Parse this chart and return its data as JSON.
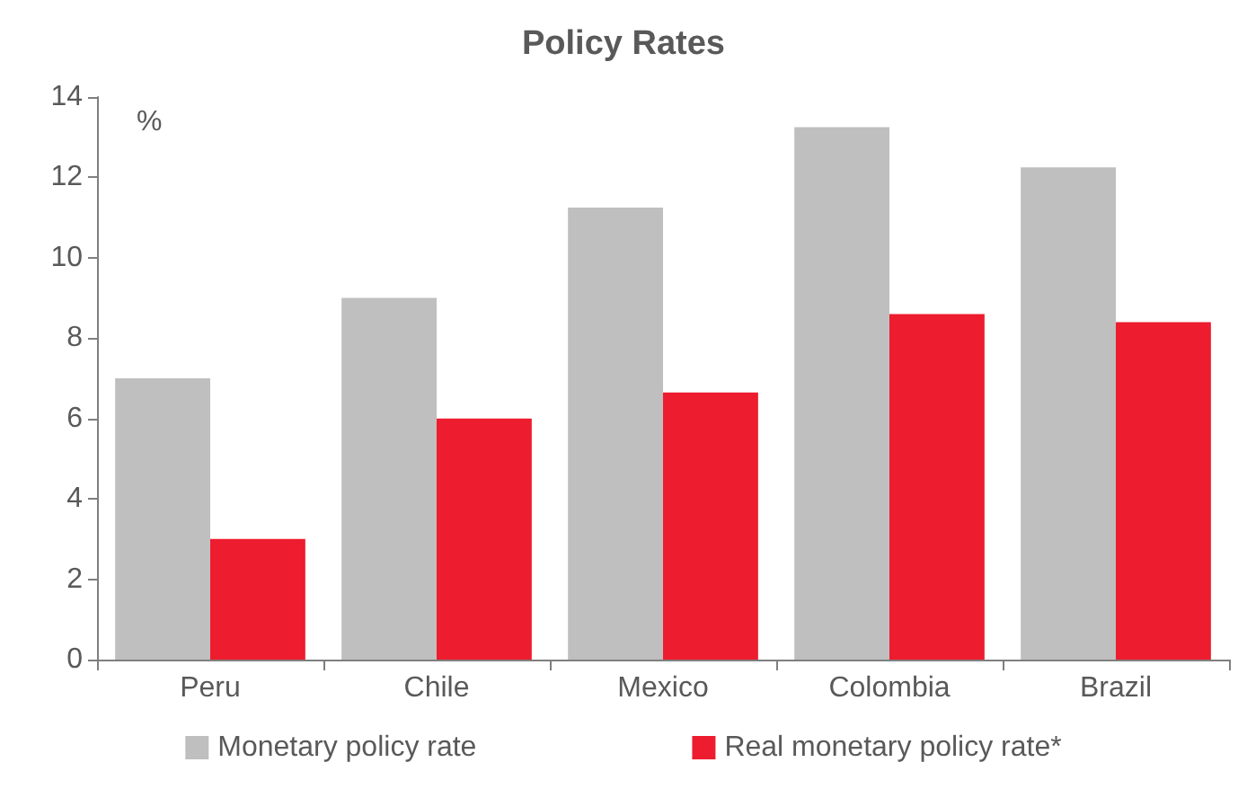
{
  "chart_data": {
    "type": "bar",
    "title": "Policy Rates",
    "ylabel": "%",
    "categories": [
      "Peru",
      "Chile",
      "Mexico",
      "Colombia",
      "Brazil"
    ],
    "series": [
      {
        "name": "Monetary policy rate",
        "color": "#bfbfbf",
        "values": [
          7.0,
          9.0,
          11.25,
          13.25,
          12.25
        ]
      },
      {
        "name": "Real monetary policy rate*",
        "color": "#ed1c2e",
        "values": [
          3.0,
          6.0,
          6.65,
          8.6,
          8.4
        ]
      }
    ],
    "ylim": [
      0,
      14
    ],
    "yticks": [
      0,
      2,
      4,
      6,
      8,
      10,
      12,
      14
    ],
    "grid": false,
    "legend": "bottom"
  }
}
